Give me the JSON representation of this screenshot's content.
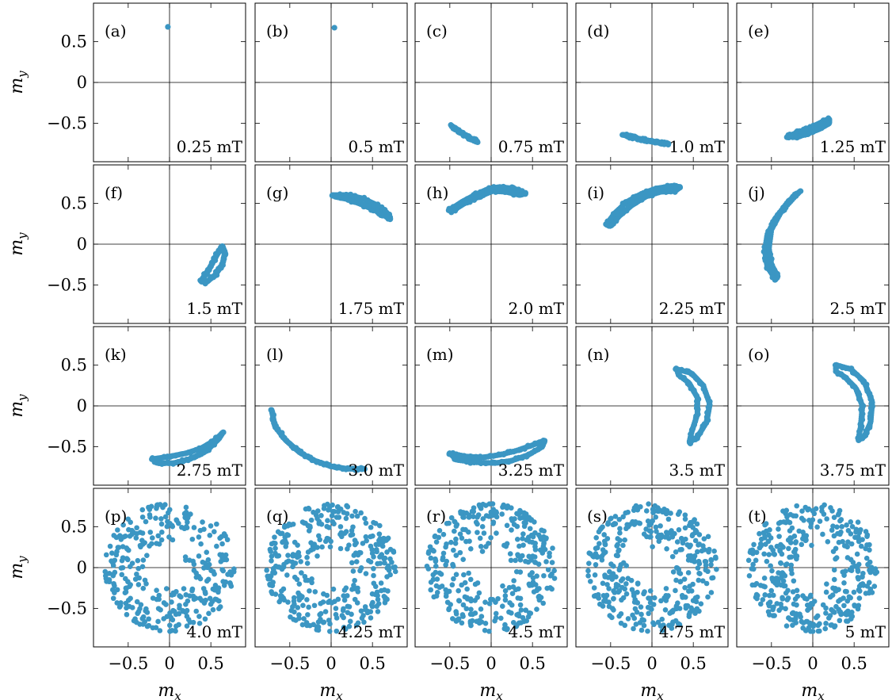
{
  "chart_data": {
    "type": "scatter",
    "layout": {
      "rows": 4,
      "cols": 5
    },
    "xlabel": "m_x",
    "ylabel": "m_y",
    "xlim": [
      -0.92,
      0.92
    ],
    "ylim": [
      -0.97,
      0.97
    ],
    "xticks": [
      -0.5,
      0,
      0.5
    ],
    "xticklabels": [
      "−0.5",
      "0",
      "0.5"
    ],
    "yticks": [
      -0.5,
      0,
      0.5
    ],
    "yticklabels": [
      "−0.5",
      "0",
      "0.5"
    ],
    "zero_lines": true,
    "marker_color": "#3b96c3",
    "panels": [
      {
        "label": "(a)",
        "field": "0.25 mT",
        "kind": "dot",
        "points": [
          [
            -0.02,
            0.68
          ]
        ]
      },
      {
        "label": "(b)",
        "field": "0.5 mT",
        "kind": "dot",
        "points": [
          [
            0.04,
            0.67
          ]
        ]
      },
      {
        "label": "(c)",
        "field": "0.75 mT",
        "kind": "path",
        "points": [
          [
            -0.48,
            -0.53
          ],
          [
            -0.38,
            -0.6
          ],
          [
            -0.28,
            -0.67
          ],
          [
            -0.17,
            -0.72
          ]
        ]
      },
      {
        "label": "(d)",
        "field": "1.0 mT",
        "kind": "path",
        "points": [
          [
            -0.35,
            -0.64
          ],
          [
            -0.2,
            -0.68
          ],
          [
            -0.05,
            -0.71
          ],
          [
            0.1,
            -0.74
          ],
          [
            0.2,
            -0.75
          ]
        ]
      },
      {
        "label": "(e)",
        "field": "1.25 mT",
        "kind": "loop",
        "points": [
          [
            -0.3,
            -0.66
          ],
          [
            -0.15,
            -0.6
          ],
          [
            0.0,
            -0.54
          ],
          [
            0.12,
            -0.48
          ],
          [
            0.2,
            -0.45
          ],
          [
            0.2,
            -0.5
          ],
          [
            0.08,
            -0.57
          ],
          [
            -0.07,
            -0.63
          ],
          [
            -0.2,
            -0.67
          ],
          [
            -0.3,
            -0.66
          ]
        ]
      },
      {
        "label": "(f)",
        "field": "1.5 mT",
        "kind": "loop",
        "points": [
          [
            0.38,
            -0.45
          ],
          [
            0.48,
            -0.3
          ],
          [
            0.58,
            -0.12
          ],
          [
            0.64,
            -0.02
          ],
          [
            0.67,
            -0.1
          ],
          [
            0.64,
            -0.25
          ],
          [
            0.55,
            -0.38
          ],
          [
            0.44,
            -0.47
          ],
          [
            0.38,
            -0.45
          ]
        ]
      },
      {
        "label": "(g)",
        "field": "1.75 mT",
        "kind": "loop",
        "points": [
          [
            0.02,
            0.6
          ],
          [
            0.2,
            0.6
          ],
          [
            0.38,
            0.56
          ],
          [
            0.55,
            0.48
          ],
          [
            0.68,
            0.38
          ],
          [
            0.72,
            0.3
          ],
          [
            0.66,
            0.34
          ],
          [
            0.52,
            0.42
          ],
          [
            0.36,
            0.49
          ],
          [
            0.2,
            0.55
          ],
          [
            0.05,
            0.58
          ],
          [
            0.02,
            0.6
          ]
        ]
      },
      {
        "label": "(h)",
        "field": "2.0 mT",
        "kind": "loop",
        "points": [
          [
            -0.5,
            0.42
          ],
          [
            -0.35,
            0.52
          ],
          [
            -0.2,
            0.6
          ],
          [
            -0.05,
            0.67
          ],
          [
            0.1,
            0.7
          ],
          [
            0.28,
            0.68
          ],
          [
            0.42,
            0.62
          ],
          [
            0.35,
            0.6
          ],
          [
            0.18,
            0.64
          ],
          [
            0.02,
            0.65
          ],
          [
            -0.15,
            0.58
          ],
          [
            -0.32,
            0.5
          ],
          [
            -0.48,
            0.4
          ],
          [
            -0.5,
            0.42
          ]
        ]
      },
      {
        "label": "(i)",
        "field": "2.25 mT",
        "kind": "loop",
        "points": [
          [
            -0.55,
            0.24
          ],
          [
            -0.45,
            0.38
          ],
          [
            -0.3,
            0.52
          ],
          [
            -0.12,
            0.62
          ],
          [
            0.05,
            0.68
          ],
          [
            0.22,
            0.71
          ],
          [
            0.35,
            0.7
          ],
          [
            0.28,
            0.65
          ],
          [
            0.1,
            0.64
          ],
          [
            -0.08,
            0.58
          ],
          [
            -0.25,
            0.47
          ],
          [
            -0.4,
            0.34
          ],
          [
            -0.5,
            0.22
          ],
          [
            -0.55,
            0.24
          ]
        ]
      },
      {
        "label": "(j)",
        "field": "2.5 mT",
        "kind": "loop",
        "points": [
          [
            -0.45,
            -0.43
          ],
          [
            -0.55,
            -0.28
          ],
          [
            -0.58,
            -0.08
          ],
          [
            -0.55,
            0.12
          ],
          [
            -0.45,
            0.32
          ],
          [
            -0.3,
            0.52
          ],
          [
            -0.15,
            0.65
          ],
          [
            -0.2,
            0.6
          ],
          [
            -0.38,
            0.4
          ],
          [
            -0.5,
            0.18
          ],
          [
            -0.53,
            -0.05
          ],
          [
            -0.5,
            -0.25
          ],
          [
            -0.42,
            -0.4
          ],
          [
            -0.45,
            -0.43
          ]
        ]
      },
      {
        "label": "(k)",
        "field": "2.75 mT",
        "kind": "loop",
        "points": [
          [
            -0.2,
            -0.65
          ],
          [
            0.0,
            -0.62
          ],
          [
            0.2,
            -0.58
          ],
          [
            0.38,
            -0.52
          ],
          [
            0.55,
            -0.42
          ],
          [
            0.65,
            -0.32
          ],
          [
            0.6,
            -0.4
          ],
          [
            0.45,
            -0.55
          ],
          [
            0.25,
            -0.65
          ],
          [
            0.05,
            -0.7
          ],
          [
            -0.15,
            -0.7
          ],
          [
            -0.2,
            -0.65
          ]
        ]
      },
      {
        "label": "(l)",
        "field": "3.0 mT",
        "kind": "path",
        "points": [
          [
            -0.72,
            -0.05
          ],
          [
            -0.68,
            -0.25
          ],
          [
            -0.55,
            -0.42
          ],
          [
            -0.38,
            -0.57
          ],
          [
            -0.2,
            -0.67
          ],
          [
            0.0,
            -0.74
          ],
          [
            0.2,
            -0.77
          ],
          [
            0.4,
            -0.77
          ]
        ]
      },
      {
        "label": "(m)",
        "field": "3.25 mT",
        "kind": "loop",
        "points": [
          [
            -0.5,
            -0.58
          ],
          [
            -0.3,
            -0.62
          ],
          [
            -0.1,
            -0.63
          ],
          [
            0.1,
            -0.6
          ],
          [
            0.3,
            -0.55
          ],
          [
            0.5,
            -0.48
          ],
          [
            0.65,
            -0.42
          ],
          [
            0.62,
            -0.5
          ],
          [
            0.45,
            -0.6
          ],
          [
            0.25,
            -0.67
          ],
          [
            0.05,
            -0.7
          ],
          [
            -0.2,
            -0.69
          ],
          [
            -0.42,
            -0.66
          ],
          [
            -0.5,
            -0.58
          ]
        ]
      },
      {
        "label": "(n)",
        "field": "3.5 mT",
        "kind": "loop",
        "points": [
          [
            0.3,
            0.45
          ],
          [
            0.48,
            0.4
          ],
          [
            0.62,
            0.25
          ],
          [
            0.7,
            0.02
          ],
          [
            0.66,
            -0.2
          ],
          [
            0.55,
            -0.38
          ],
          [
            0.45,
            -0.45
          ],
          [
            0.48,
            -0.32
          ],
          [
            0.55,
            -0.1
          ],
          [
            0.55,
            0.1
          ],
          [
            0.45,
            0.28
          ],
          [
            0.32,
            0.38
          ],
          [
            0.3,
            0.45
          ]
        ]
      },
      {
        "label": "(o)",
        "field": "3.75 mT",
        "kind": "loop",
        "points": [
          [
            0.28,
            0.5
          ],
          [
            0.46,
            0.45
          ],
          [
            0.62,
            0.3
          ],
          [
            0.72,
            0.05
          ],
          [
            0.7,
            -0.2
          ],
          [
            0.62,
            -0.38
          ],
          [
            0.55,
            -0.42
          ],
          [
            0.58,
            -0.25
          ],
          [
            0.6,
            0.0
          ],
          [
            0.52,
            0.22
          ],
          [
            0.38,
            0.36
          ],
          [
            0.28,
            0.42
          ],
          [
            0.28,
            0.5
          ]
        ]
      },
      {
        "label": "(p)",
        "field": "4.0 mT",
        "kind": "cloud",
        "seed": 11,
        "count": 320
      },
      {
        "label": "(q)",
        "field": "4.25 mT",
        "kind": "cloud",
        "seed": 23,
        "count": 360
      },
      {
        "label": "(r)",
        "field": "4.5 mT",
        "kind": "cloud",
        "seed": 37,
        "count": 340
      },
      {
        "label": "(s)",
        "field": "4.75 mT",
        "kind": "cloud",
        "seed": 53,
        "count": 360
      },
      {
        "label": "(t)",
        "field": "5 mT",
        "kind": "cloud",
        "seed": 71,
        "count": 380
      }
    ]
  }
}
